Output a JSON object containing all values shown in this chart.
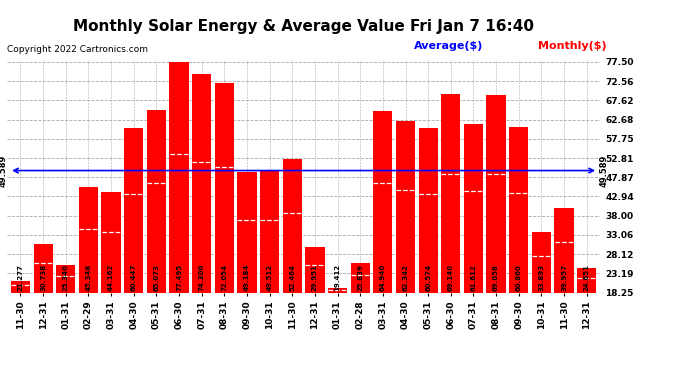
{
  "title": "Monthly Solar Energy & Average Value Fri Jan 7 16:40",
  "copyright": "Copyright 2022 Cartronics.com",
  "categories": [
    "11-30",
    "12-31",
    "01-31",
    "02-29",
    "03-31",
    "04-30",
    "05-31",
    "06-30",
    "07-31",
    "08-31",
    "09-30",
    "10-31",
    "11-30",
    "12-31",
    "01-31",
    "02-28",
    "03-31",
    "04-30",
    "05-31",
    "06-30",
    "07-31",
    "08-31",
    "09-30",
    "10-31",
    "11-30",
    "12-31"
  ],
  "values": [
    21.277,
    30.738,
    25.34,
    45.348,
    44.162,
    60.447,
    65.073,
    77.495,
    74.3,
    72.054,
    49.184,
    49.512,
    52.464,
    29.951,
    19.412,
    25.839,
    64.94,
    62.342,
    60.574,
    69.14,
    61.612,
    69.058,
    60.86,
    33.893,
    39.957,
    24.651
  ],
  "average": 49.589,
  "bar_color": "#ff0000",
  "average_color": "#0000ff",
  "yticks": [
    18.25,
    23.19,
    28.12,
    33.06,
    38.0,
    42.94,
    47.87,
    52.81,
    57.75,
    62.68,
    67.62,
    72.56,
    77.5
  ],
  "ymin": 18.25,
  "ymax": 77.5,
  "background_color": "#ffffff",
  "grid_color": "#aaaaaa",
  "title_fontsize": 11,
  "tick_fontsize": 6.5,
  "legend_avg_label": "Average($)",
  "legend_monthly_label": "Monthly($)"
}
